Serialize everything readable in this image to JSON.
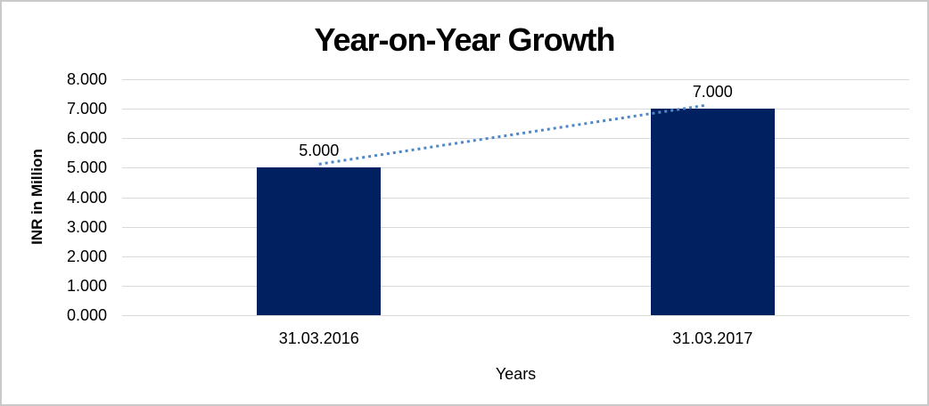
{
  "window": {
    "background": "#ffffff",
    "border_color": "#c9c9c9"
  },
  "chart_data": {
    "type": "bar",
    "title": "Year-on-Year Growth",
    "xlabel": "Years",
    "ylabel": "INR in Million",
    "categories": [
      "31.03.2016",
      "31.03.2017"
    ],
    "values": [
      5,
      7
    ],
    "value_labels": [
      "5.000",
      "7.000"
    ],
    "y_ticks": [
      "0.000",
      "1.000",
      "2.000",
      "3.000",
      "4.000",
      "5.000",
      "6.000",
      "7.000",
      "8.000"
    ],
    "ylim": [
      0,
      8
    ],
    "grid": "horizontal-only",
    "legend": "none",
    "bar_color": "#002060",
    "gridline_color": "#d9d9d9",
    "trendline": {
      "style": "dotted",
      "color": "#4f87c7",
      "from_value": 5,
      "to_value": 7
    }
  }
}
